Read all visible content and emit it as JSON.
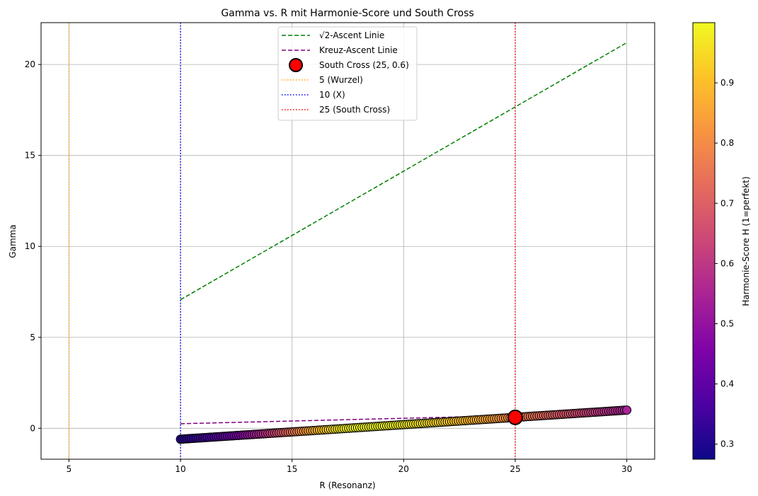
{
  "chart_data": {
    "type": "scatter",
    "title": "Gamma vs. R mit Harmonie-Score und South Cross",
    "xlabel": "R (Resonanz)",
    "ylabel": "Gamma",
    "xlim": [
      3.75,
      31.25
    ],
    "ylim": [
      -1.7,
      22.3
    ],
    "grid": true,
    "x_ticks": [
      5,
      10,
      15,
      20,
      25,
      30
    ],
    "y_ticks": [
      0,
      5,
      10,
      15,
      20
    ],
    "legend_position": "top-center",
    "lines": [
      {
        "name": "√2-Ascent Linie",
        "style": "dashed",
        "color": "#008000",
        "x": [
          10,
          30
        ],
        "y": [
          7.07,
          21.2
        ]
      },
      {
        "name": "Kreuz-Ascent Linie",
        "style": "dashed",
        "color": "#800080",
        "x": [
          10,
          30
        ],
        "y": [
          0.25,
          0.85
        ]
      }
    ],
    "scatter_series": {
      "x_range": [
        10,
        30
      ],
      "y_range": [
        -0.6,
        1.0
      ],
      "count": 200,
      "color_by": "harmonie_score",
      "h_peak_x": 18
    },
    "south_cross": {
      "name": "South Cross (25, 0.6)",
      "x": 25,
      "y": 0.6,
      "color": "#ff0000"
    },
    "vlines": [
      {
        "name": "5 (Wurzel)",
        "x": 5,
        "color": "#ffa500",
        "style": "dotted"
      },
      {
        "name": "10 (X)",
        "x": 10,
        "color": "#0000ff",
        "style": "dotted"
      },
      {
        "name": "25 (South Cross)",
        "x": 25,
        "color": "#ff0000",
        "style": "dotted"
      }
    ],
    "colorbar": {
      "label": "Harmonie-Score H (1=perfekt)",
      "colormap": "plasma",
      "range": [
        0.275,
        1.0
      ],
      "ticks": [
        0.3,
        0.4,
        0.5,
        0.6,
        0.7,
        0.8,
        0.9
      ]
    }
  }
}
